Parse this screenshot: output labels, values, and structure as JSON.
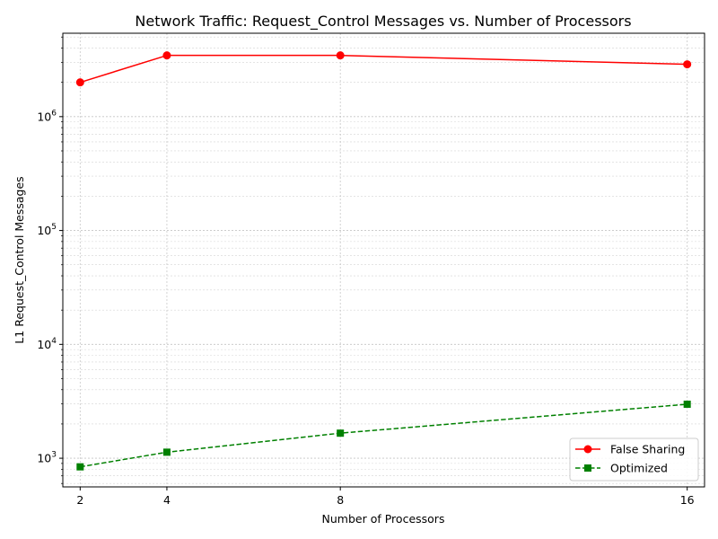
{
  "chart_data": {
    "type": "line",
    "title": "Network Traffic: Request_Control Messages vs. Number of Processors",
    "xlabel": "Number of Processors",
    "ylabel": "L1 Request_Control Messages",
    "x": [
      2,
      4,
      8,
      16
    ],
    "x_tick_labels": [
      "2",
      "4",
      "8",
      "16"
    ],
    "y_scale": "log",
    "ylim": [
      560,
      5400000
    ],
    "y_major_ticks": [
      {
        "value": 1000,
        "base": "10",
        "exp": "3"
      },
      {
        "value": 10000,
        "base": "10",
        "exp": "4"
      },
      {
        "value": 100000,
        "base": "10",
        "exp": "5"
      },
      {
        "value": 1000000,
        "base": "10",
        "exp": "6"
      }
    ],
    "grid": true,
    "legend_position": "bottom-right",
    "series": [
      {
        "name": "False Sharing",
        "values": [
          2000000,
          3450000,
          3450000,
          2880000
        ],
        "color": "#ff0000",
        "line_style": "solid",
        "marker": "circle"
      },
      {
        "name": "Optimized",
        "values": [
          840,
          1130,
          1660,
          2980
        ],
        "color": "#008000",
        "line_style": "dashed",
        "marker": "square"
      }
    ]
  }
}
